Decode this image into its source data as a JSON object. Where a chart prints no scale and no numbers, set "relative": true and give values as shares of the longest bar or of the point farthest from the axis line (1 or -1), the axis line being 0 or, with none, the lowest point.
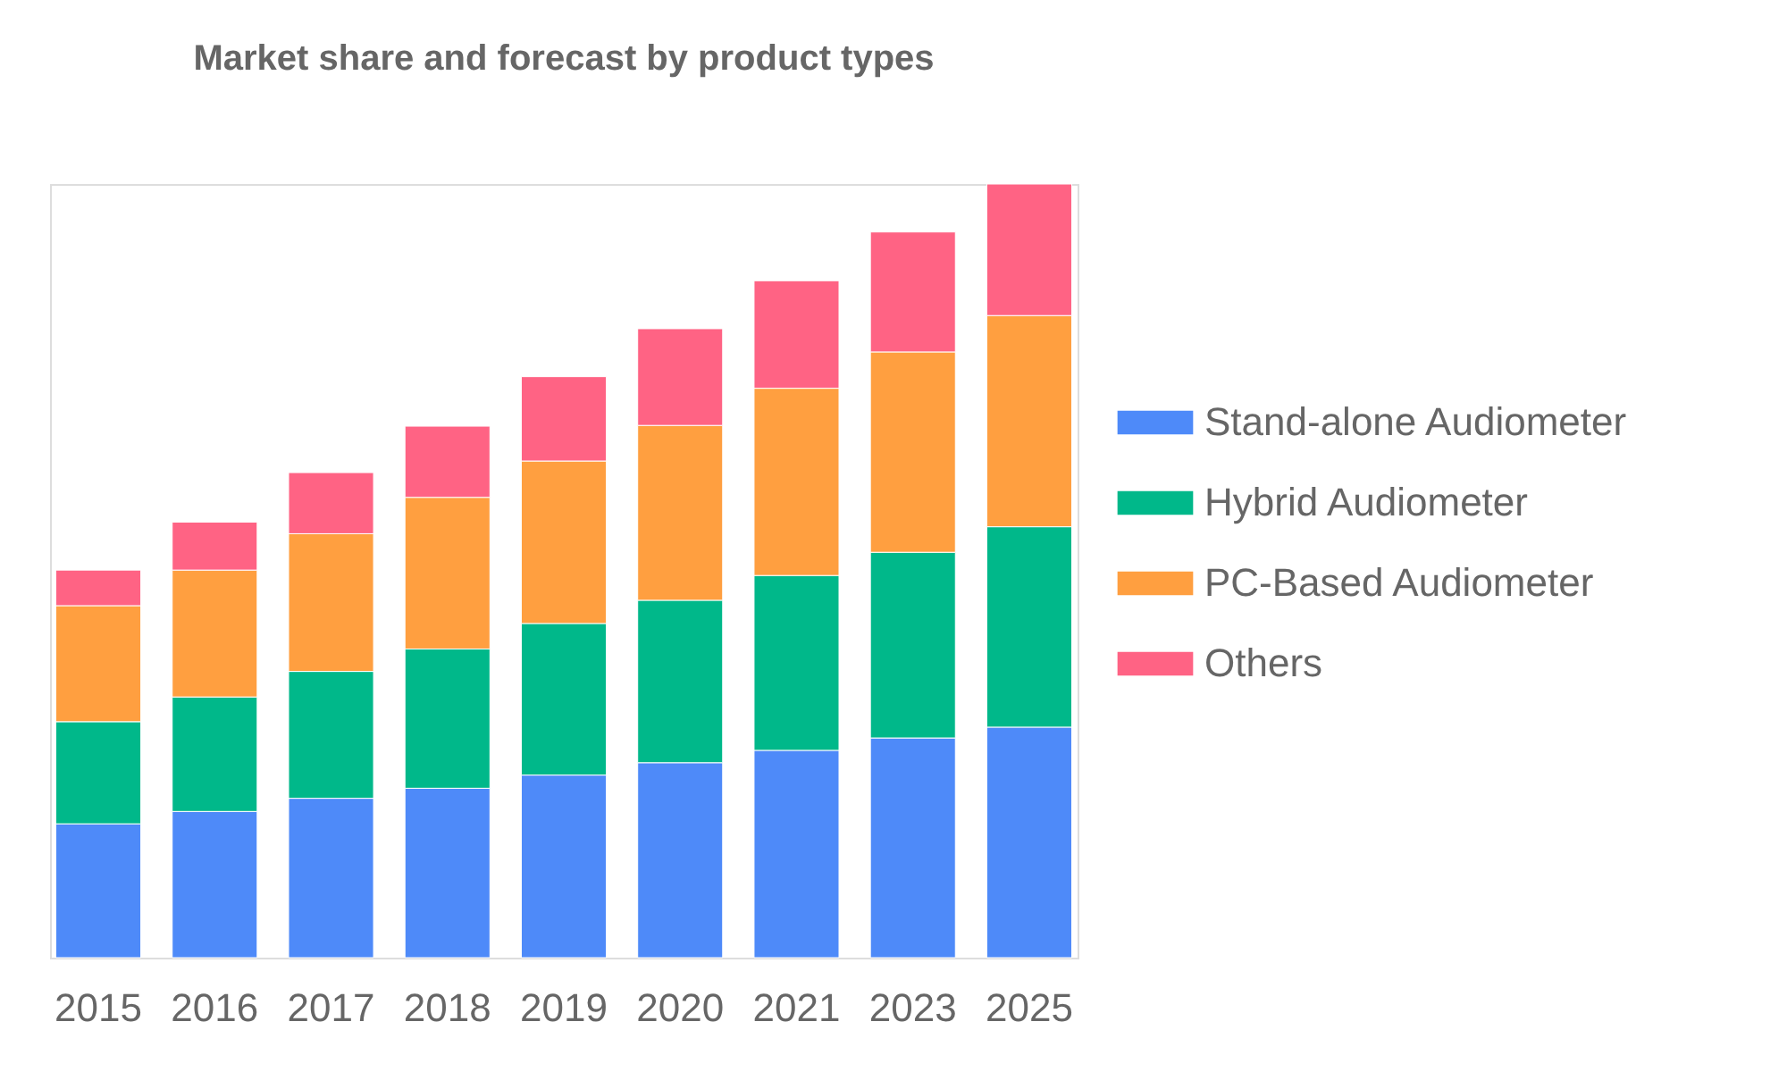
{
  "chart_data": {
    "type": "bar",
    "title": "Market share and forecast by product types",
    "categories": [
      "2015",
      "2016",
      "2017",
      "2018",
      "2019",
      "2020",
      "2021",
      "2023",
      "2025"
    ],
    "stacked": true,
    "relative": true,
    "legend": "right",
    "series": [
      {
        "name": "Stand-alone Audiometer",
        "color": "#4e8af9",
        "values": [
          0.173,
          0.189,
          0.206,
          0.219,
          0.236,
          0.252,
          0.268,
          0.284,
          0.298
        ]
      },
      {
        "name": "Hybrid Audiometer",
        "color": "#00b88a",
        "values": [
          0.132,
          0.148,
          0.164,
          0.18,
          0.196,
          0.21,
          0.226,
          0.24,
          0.259
        ]
      },
      {
        "name": "PC-Based Audiometer",
        "color": "#ff9f40",
        "values": [
          0.15,
          0.164,
          0.178,
          0.196,
          0.21,
          0.226,
          0.242,
          0.259,
          0.273
        ]
      },
      {
        "name": "Others",
        "color": "#ff6384",
        "values": [
          0.046,
          0.062,
          0.079,
          0.092,
          0.109,
          0.125,
          0.139,
          0.155,
          0.17
        ]
      }
    ]
  }
}
